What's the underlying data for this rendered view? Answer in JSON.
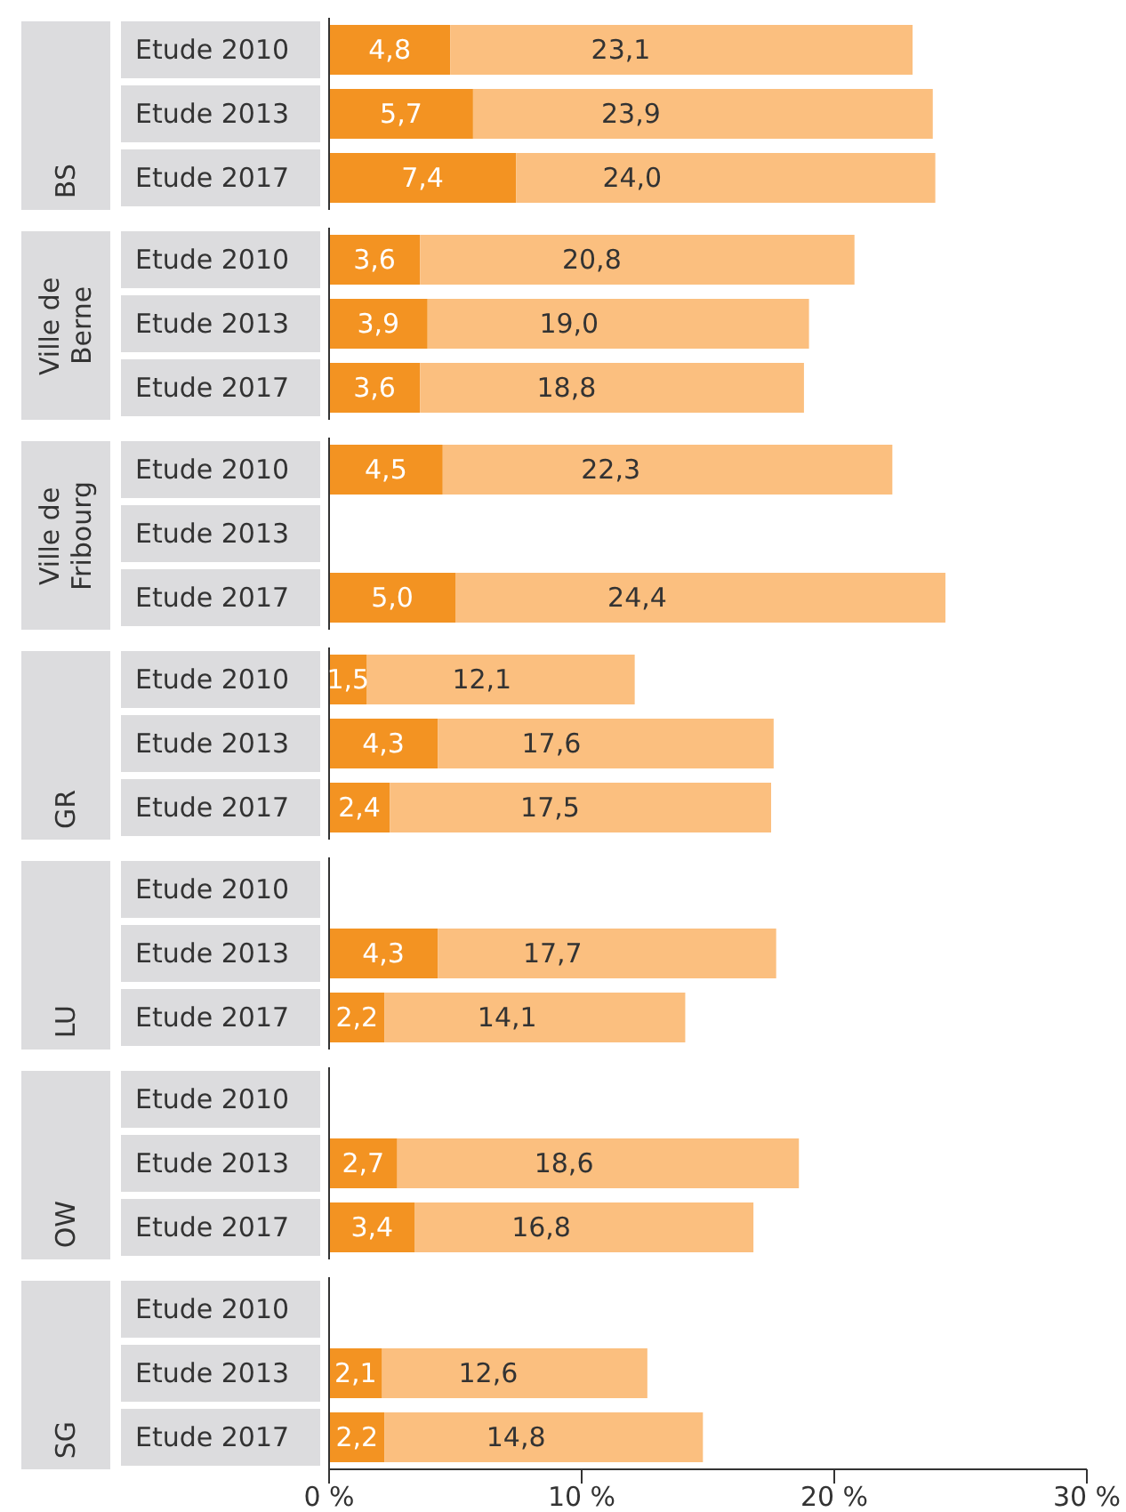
{
  "chart_data": {
    "type": "bar",
    "orientation": "horizontal",
    "categories": [
      "Etude 2010",
      "Etude 2013",
      "Etude 2017",
      "Etude 2010",
      "Etude 2013",
      "Etude 2017",
      "Etude 2010",
      "Etude 2013",
      "Etude 2017",
      "Etude 2010",
      "Etude 2013",
      "Etude 2017",
      "Etude 2010",
      "Etude 2013",
      "Etude 2017",
      "Etude 2010",
      "Etude 2013",
      "Etude 2017",
      "Etude 2010",
      "Etude 2013",
      "Etude 2017"
    ],
    "series": [
      {
        "color": "#f39322",
        "values": [
          4.8,
          5.7,
          7.4,
          3.6,
          3.9,
          3.6,
          4.5,
          null,
          5.0,
          1.5,
          4.3,
          2.4,
          null,
          4.3,
          2.2,
          null,
          2.7,
          3.4,
          null,
          2.1,
          2.2
        ],
        "value_labels": [
          "4,8",
          "5,7",
          "7,4",
          "3,6",
          "3,9",
          "3,6",
          "4,5",
          null,
          "5,0",
          "1,5",
          "4,3",
          "2,4",
          null,
          "4,3",
          "2,2",
          null,
          "2,7",
          "3,4",
          null,
          "2,1",
          "2,2"
        ]
      },
      {
        "color": "#fbbf7f",
        "values": [
          18.3,
          18.2,
          16.6,
          17.2,
          15.1,
          15.2,
          17.8,
          null,
          19.4,
          10.6,
          13.3,
          15.1,
          null,
          13.4,
          11.9,
          null,
          15.9,
          13.4,
          null,
          10.5,
          12.6
        ]
      }
    ],
    "stacked": true,
    "totals": [
      "23,1",
      "23,9",
      "24,0",
      "20,8",
      "19,0",
      "18,8",
      "22,3",
      null,
      "24,4",
      "12,1",
      "17,6",
      "17,5",
      null,
      "17,7",
      "14,1",
      null,
      "18,6",
      "16,8",
      null,
      "12,6",
      "14,8"
    ],
    "annotations": [
      "BS",
      "Ville de Berne",
      "Ville de Fribourg",
      "GR",
      "LU",
      "OW",
      "SG"
    ],
    "xlim": [
      0,
      30
    ],
    "xticks": [
      {
        "value": 0,
        "label": "0 %"
      },
      {
        "value": 10,
        "label": "10 %"
      },
      {
        "value": 20,
        "label": "20 %"
      },
      {
        "value": 30,
        "label": "30 %"
      }
    ],
    "grid": false
  }
}
